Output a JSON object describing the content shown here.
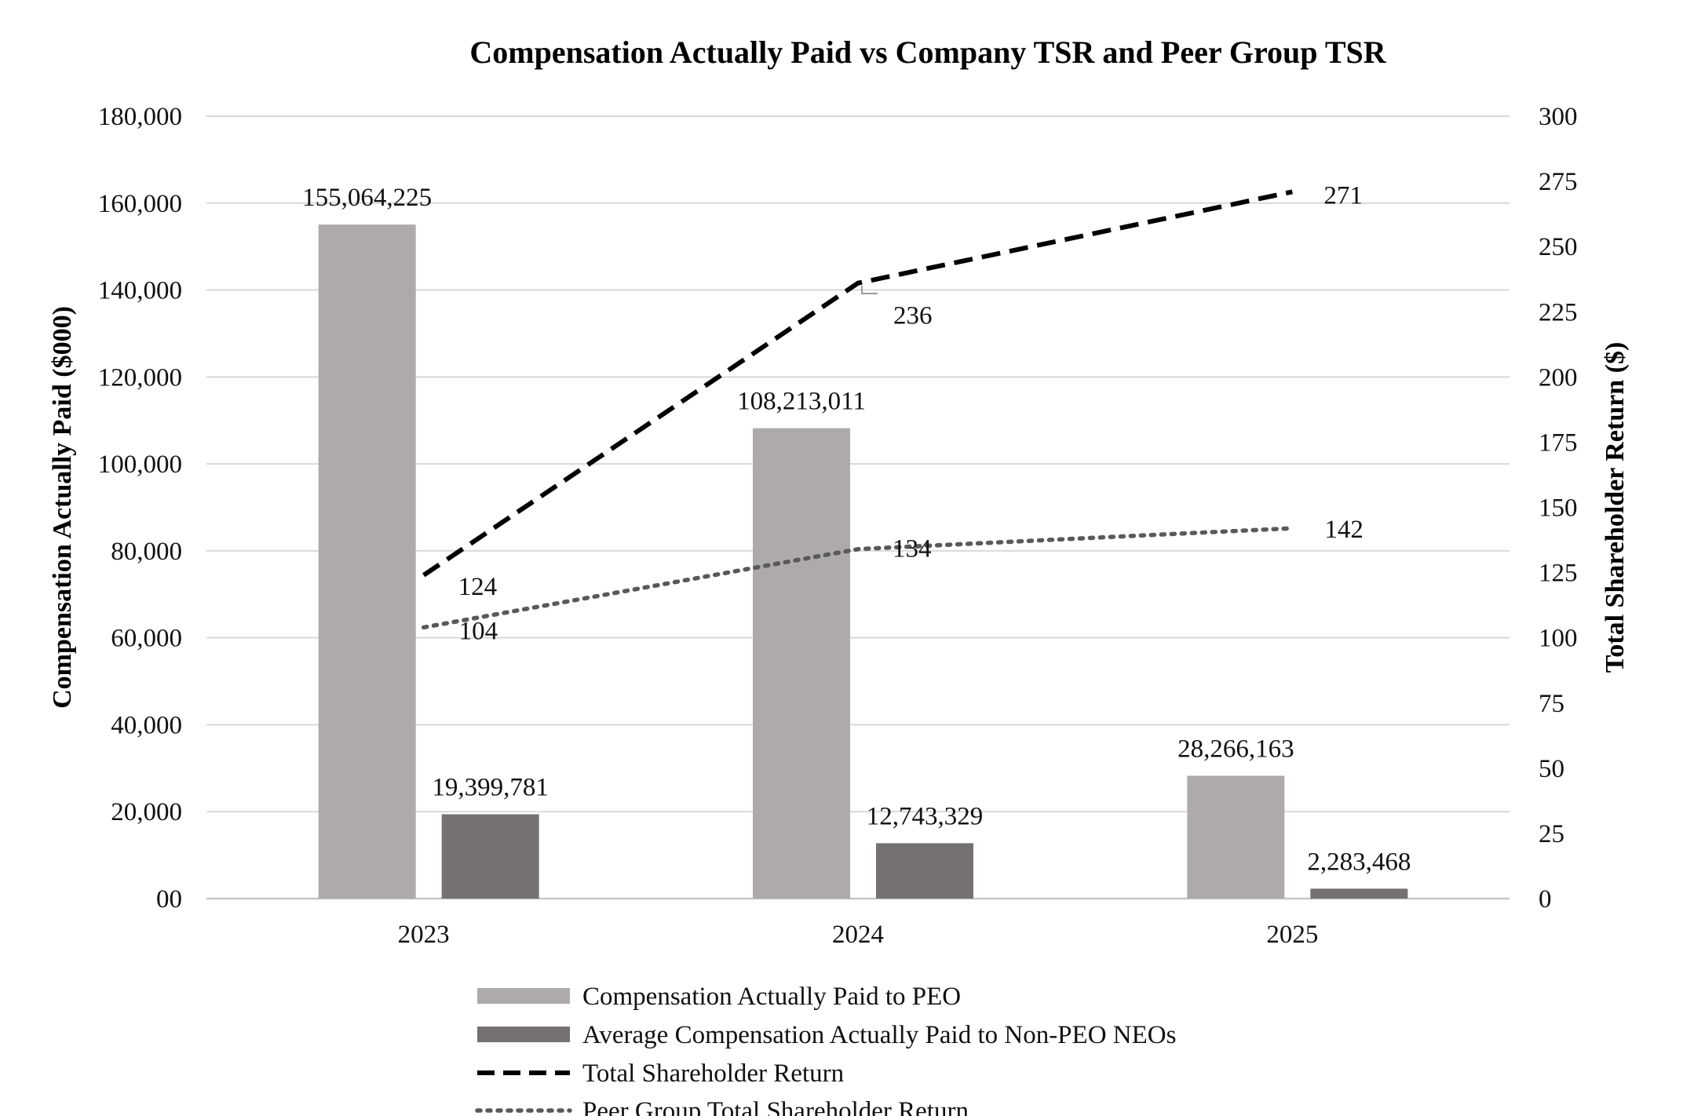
{
  "chart_data": {
    "type": "bar",
    "title": "Compensation Actually Paid vs Company TSR and Peer Group TSR",
    "categories": [
      "2023",
      "2024",
      "2025"
    ],
    "y_left": {
      "label": "Compensation Actually Paid ($000)",
      "ylim": [
        0,
        180000
      ],
      "ticks": [
        "00",
        "20,000",
        "40,000",
        "60,000",
        "80,000",
        "100,000",
        "120,000",
        "140,000",
        "160,000",
        "180,000"
      ]
    },
    "y_right": {
      "label": "Total Shareholder Return ($)",
      "ylim": [
        0,
        300
      ],
      "ticks": [
        "0",
        "25",
        "50",
        "75",
        "100",
        "125",
        "150",
        "175",
        "200",
        "225",
        "250",
        "275",
        "300"
      ]
    },
    "series": [
      {
        "name": "Compensation Actually Paid to PEO",
        "kind": "bar",
        "axis": "left",
        "color": "#aeaaa9",
        "values": [
          155064.225,
          108213.011,
          28266.163
        ],
        "labels": [
          "155,064,225",
          "108,213,011",
          "28,266,163"
        ]
      },
      {
        "name": "Average Compensation Actually Paid to Non-PEO NEOs",
        "kind": "bar",
        "axis": "left",
        "color": "#767171",
        "values": [
          19399.781,
          12743.329,
          2283.468
        ],
        "labels": [
          "19,399,781",
          "12,743,329",
          "2,283,468"
        ]
      },
      {
        "name": "Total Shareholder Return",
        "kind": "line",
        "style": "dashed",
        "axis": "right",
        "color": "#000000",
        "values": [
          124,
          236,
          271
        ],
        "labels": [
          "124",
          "236",
          "271"
        ]
      },
      {
        "name": "Peer Group Total Shareholder Return",
        "kind": "line",
        "style": "dotted",
        "axis": "right",
        "color": "#595959",
        "values": [
          104,
          134,
          142
        ],
        "labels": [
          "104",
          "134",
          "142"
        ]
      }
    ],
    "grid": true,
    "legend_position": "bottom"
  }
}
